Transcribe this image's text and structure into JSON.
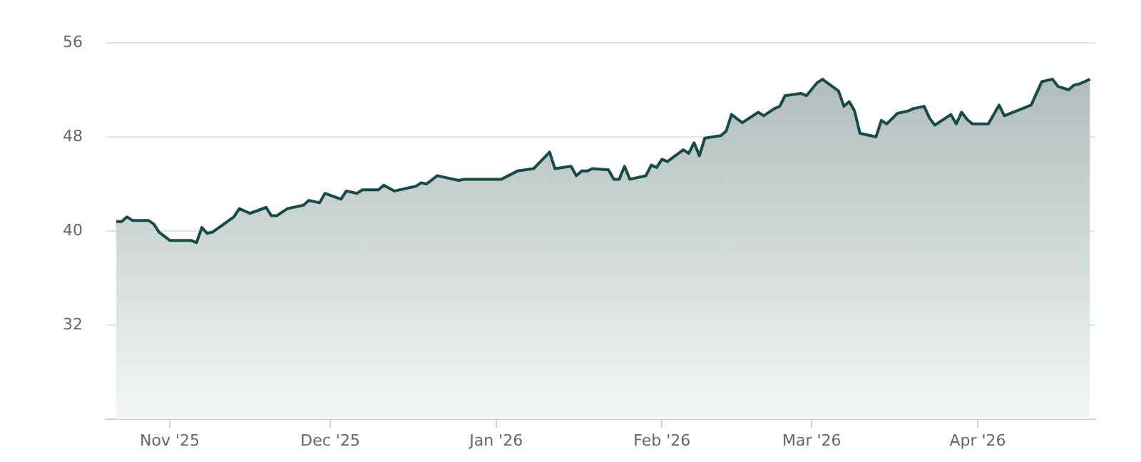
{
  "chart_data": {
    "type": "area",
    "x": [
      "2025-10-22",
      "2025-10-23",
      "2025-10-24",
      "2025-10-25",
      "2025-10-28",
      "2025-10-29",
      "2025-10-30",
      "2025-11-01",
      "2025-11-05",
      "2025-11-06",
      "2025-11-07",
      "2025-11-08",
      "2025-11-09",
      "2025-11-13",
      "2025-11-14",
      "2025-11-16",
      "2025-11-19",
      "2025-11-20",
      "2025-11-21",
      "2025-11-23",
      "2025-11-26",
      "2025-11-27",
      "2025-11-29",
      "2025-11-30",
      "2025-12-03",
      "2025-12-04",
      "2025-12-06",
      "2025-12-07",
      "2025-12-10",
      "2025-12-11",
      "2025-12-13",
      "2025-12-17",
      "2025-12-18",
      "2025-12-19",
      "2025-12-21",
      "2025-12-22",
      "2025-12-25",
      "2025-12-26",
      "2026-01-02",
      "2026-01-05",
      "2026-01-08",
      "2026-01-11",
      "2026-01-12",
      "2026-01-15",
      "2026-01-16",
      "2026-01-17",
      "2026-01-18",
      "2026-01-19",
      "2026-01-22",
      "2026-01-23",
      "2026-01-24",
      "2026-01-25",
      "2026-01-26",
      "2026-01-29",
      "2026-01-30",
      "2026-01-31",
      "2026-02-01",
      "2026-02-02",
      "2026-02-05",
      "2026-02-06",
      "2026-02-07",
      "2026-02-08",
      "2026-02-09",
      "2026-02-12",
      "2026-02-13",
      "2026-02-14",
      "2026-02-16",
      "2026-02-19",
      "2026-02-20",
      "2026-02-22",
      "2026-02-23",
      "2026-02-24",
      "2026-02-27",
      "2026-02-28",
      "2026-03-02",
      "2026-03-03",
      "2026-03-06",
      "2026-03-07",
      "2026-03-08",
      "2026-03-09",
      "2026-03-10",
      "2026-03-13",
      "2026-03-14",
      "2026-03-15",
      "2026-03-17",
      "2026-03-19",
      "2026-03-20",
      "2026-03-22",
      "2026-03-23",
      "2026-03-24",
      "2026-03-27",
      "2026-03-28",
      "2026-03-29",
      "2026-03-30",
      "2026-03-31",
      "2026-04-03",
      "2026-04-05",
      "2026-04-06",
      "2026-04-11",
      "2026-04-13",
      "2026-04-15",
      "2026-04-16",
      "2026-04-18",
      "2026-04-19",
      "2026-04-20",
      "2026-04-22"
    ],
    "series": [
      {
        "color": "#174b45",
        "values": [
          40.8,
          40.8,
          41.2,
          40.9,
          40.9,
          40.6,
          39.9,
          39.2,
          39.2,
          39.0,
          40.3,
          39.8,
          39.9,
          41.2,
          41.9,
          41.5,
          42.0,
          41.3,
          41.3,
          41.9,
          42.2,
          42.6,
          42.4,
          43.2,
          42.7,
          43.4,
          43.2,
          43.5,
          43.5,
          43.9,
          43.4,
          43.8,
          44.1,
          44.0,
          44.7,
          44.6,
          44.3,
          44.4,
          44.4,
          45.1,
          45.3,
          46.7,
          45.3,
          45.5,
          44.7,
          45.1,
          45.1,
          45.3,
          45.2,
          44.4,
          44.4,
          45.5,
          44.4,
          44.7,
          45.6,
          45.4,
          46.1,
          45.9,
          46.9,
          46.6,
          47.5,
          46.4,
          47.9,
          48.1,
          48.5,
          49.9,
          49.2,
          50.1,
          49.8,
          50.4,
          50.6,
          51.5,
          51.7,
          51.5,
          52.6,
          52.9,
          51.9,
          50.6,
          51.0,
          50.2,
          48.3,
          48.0,
          49.4,
          49.1,
          50.0,
          50.2,
          50.4,
          50.6,
          49.6,
          49.0,
          49.9,
          49.1,
          50.1,
          49.5,
          49.1,
          49.1,
          50.7,
          49.8,
          50.7,
          52.7,
          52.9,
          52.3,
          52.0,
          52.4,
          52.5,
          52.9
        ]
      }
    ],
    "xlim": [
      "2025-10-20",
      "2026-04-23"
    ],
    "xticks": [
      {
        "value": "2025-11-01",
        "label": "Nov '25"
      },
      {
        "value": "2025-12-01",
        "label": "Dec '25"
      },
      {
        "value": "2026-01-01",
        "label": "Jan '26"
      },
      {
        "value": "2026-02-01",
        "label": "Feb '26"
      },
      {
        "value": "2026-03-01",
        "label": "Mar '26"
      },
      {
        "value": "2026-04-01",
        "label": "Apr '26"
      }
    ],
    "ylim": [
      24,
      56
    ],
    "yticks": [
      32,
      40,
      48,
      56
    ],
    "grid": "y",
    "legend": false,
    "marker": "none",
    "line_style": "solid"
  }
}
